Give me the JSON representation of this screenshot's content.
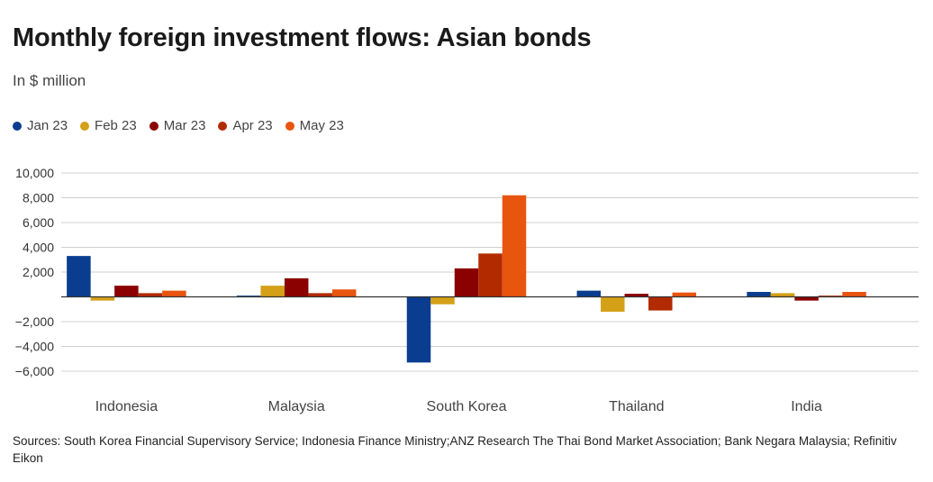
{
  "header": {
    "title": "Monthly foreign investment flows: Asian bonds",
    "subtitle": "In $ million"
  },
  "colors": {
    "Jan 23": "#0a3d8f",
    "Feb 23": "#d4a017",
    "Mar 23": "#8b0000",
    "Apr 23": "#b22a00",
    "May 23": "#e8550f"
  },
  "chart_data": {
    "type": "bar",
    "title": "Monthly foreign investment flows: Asian bonds",
    "subtitle": "In $ million",
    "categories": [
      "Indonesia",
      "Malaysia",
      "South Korea",
      "Thailand",
      "India"
    ],
    "series": [
      {
        "name": "Jan 23",
        "values": [
          3300,
          100,
          -5300,
          500,
          400
        ]
      },
      {
        "name": "Feb 23",
        "values": [
          -300,
          900,
          -600,
          -1200,
          300
        ]
      },
      {
        "name": "Mar 23",
        "values": [
          900,
          1500,
          2300,
          250,
          -300
        ]
      },
      {
        "name": "Apr 23",
        "values": [
          300,
          300,
          3500,
          -1100,
          100
        ]
      },
      {
        "name": "May 23",
        "values": [
          500,
          600,
          8200,
          350,
          400
        ]
      }
    ],
    "yticks": [
      10000,
      8000,
      6000,
      4000,
      2000,
      0,
      -2000,
      -4000,
      -6000
    ],
    "ytick_labels": [
      "10,000",
      "8,000",
      "6,000",
      "4,000",
      "2,000",
      "",
      "−2,000",
      "−4,000",
      "−6,000"
    ],
    "ylim": [
      -6000,
      10000
    ],
    "legend_position": "top-left",
    "grid": true
  },
  "footer": {
    "source": "Sources: South Korea Financial Supervisory Service; Indonesia Finance Ministry;ANZ Research The Thai Bond Market Association; Bank Negara Malaysia; Refinitiv Eikon"
  }
}
